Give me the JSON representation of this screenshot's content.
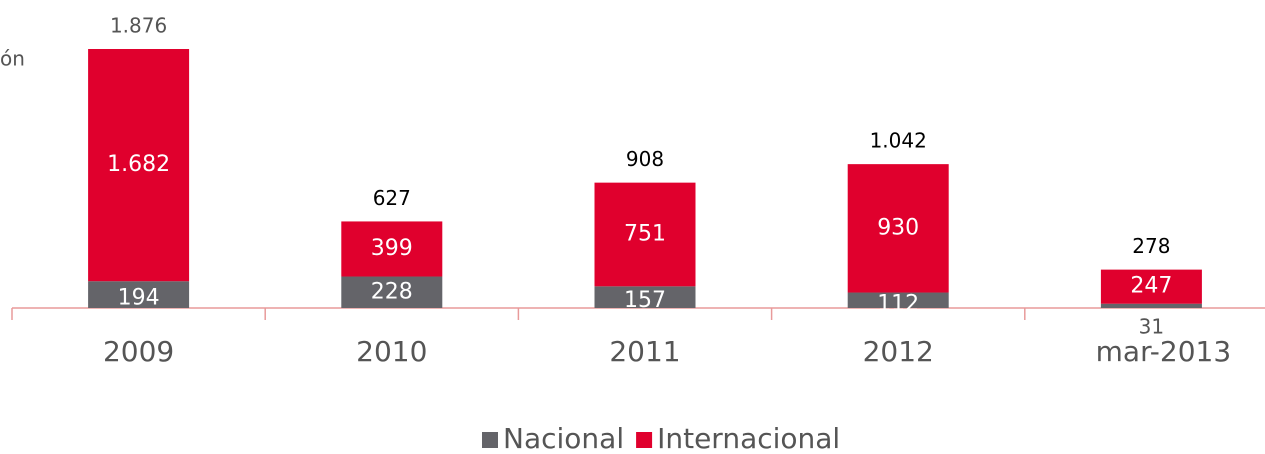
{
  "chart_data": {
    "type": "stacked-bar",
    "axis_label": "ón",
    "categories": [
      "2009",
      "2010",
      "2011",
      "2012",
      "mar-2013"
    ],
    "series": [
      {
        "name": "Nacional",
        "color": "#646469",
        "values": [
          194,
          228,
          157,
          112,
          31
        ]
      },
      {
        "name": "Internacional",
        "color": "#e0002d",
        "values": [
          1682,
          399,
          751,
          930,
          247
        ],
        "value_labels": [
          "1.682",
          "399",
          "751",
          "930",
          "247"
        ]
      }
    ],
    "totals": {
      "values": [
        1876,
        627,
        908,
        1042,
        278
      ],
      "value_labels": [
        "1.876",
        "627",
        "908",
        "1.042",
        "278"
      ]
    },
    "legend": "bottom"
  }
}
